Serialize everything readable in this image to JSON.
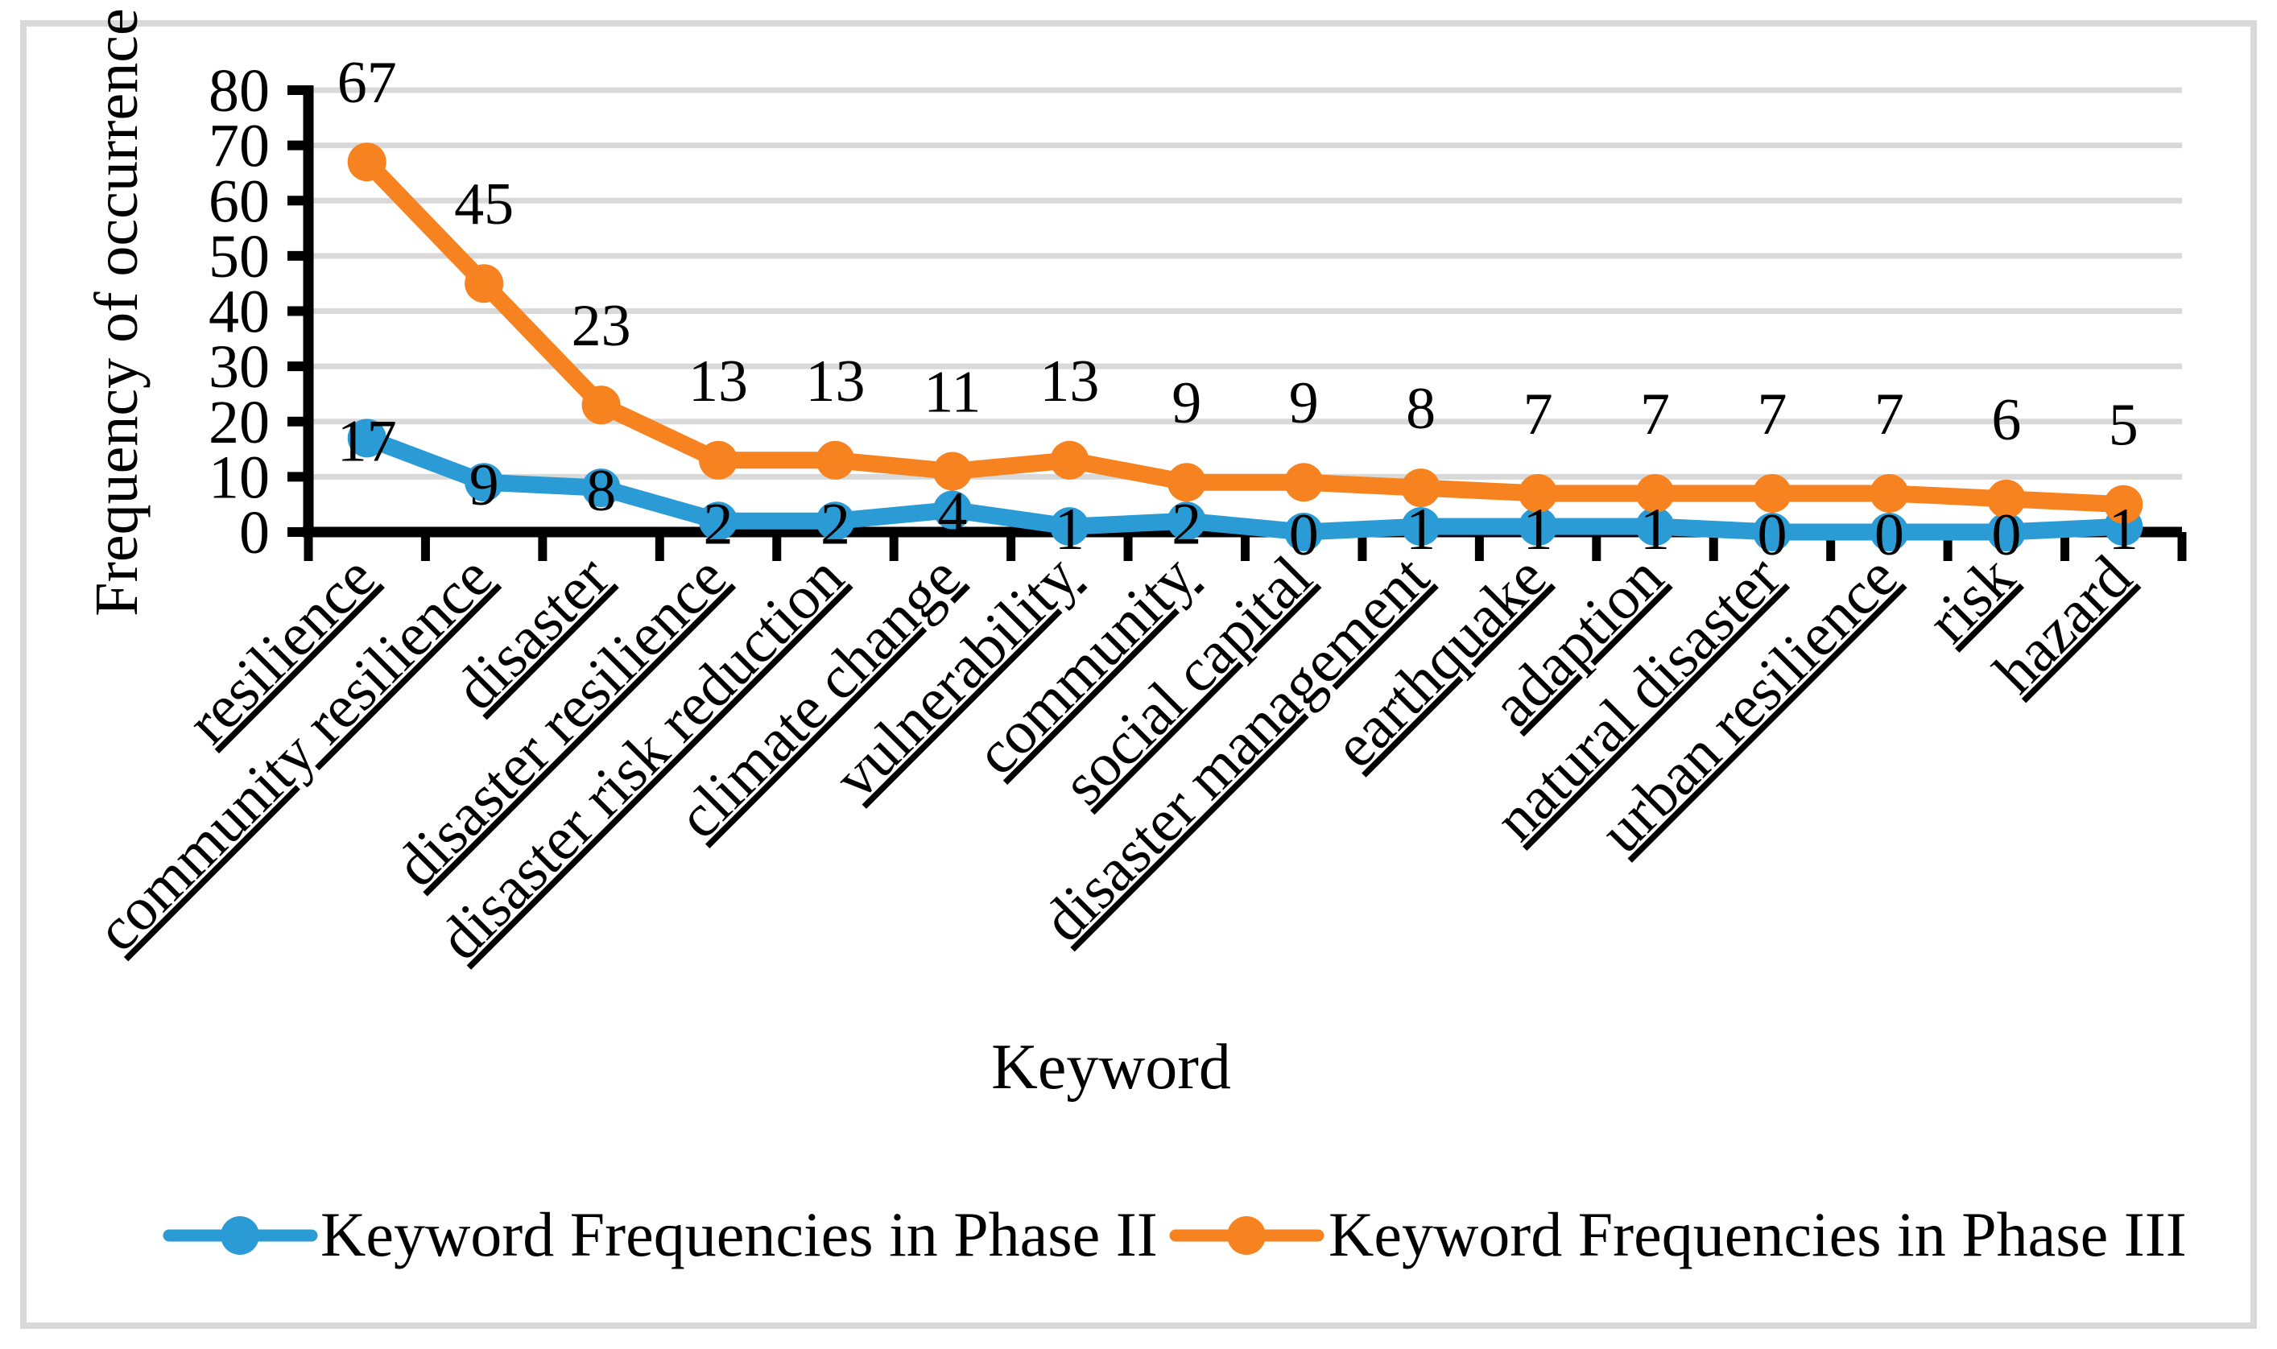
{
  "figure": {
    "background": "#FFFFFF",
    "border_color": "#D9D9D9"
  },
  "chart_data": {
    "type": "line",
    "title": "",
    "xlabel": "Keyword",
    "ylabel": "Frequency of occurrence",
    "ylim": [
      0,
      80
    ],
    "ytick_step": 10,
    "yticks": [
      0,
      10,
      20,
      30,
      40,
      50,
      60,
      70,
      80
    ],
    "grid": "horizontal",
    "gridline_color": "#D9D9D9",
    "axis_color": "#000000",
    "text_color": "#000000",
    "legend_position": "bottom",
    "category_label_style": "rotated-45-underlined",
    "categories": [
      "resilience",
      "community resilience",
      "disaster",
      "disaster resilience",
      "disaster risk reduction",
      "climate change",
      "vulnerability",
      "community",
      "social capital",
      "disaster management",
      "earthquake",
      "adaption",
      "natural disaster",
      "urban resilience",
      "risk",
      "hazard"
    ],
    "series": [
      {
        "name": "Keyword Frequencies in Phase II",
        "color": "#2B9BD6",
        "marker": "circle",
        "label_position": "center",
        "values": [
          17,
          9,
          8,
          2,
          2,
          4,
          1,
          2,
          0,
          1,
          1,
          1,
          0,
          0,
          0,
          1
        ]
      },
      {
        "name": "Keyword Frequencies in Phase III",
        "color": "#F68220",
        "marker": "circle",
        "label_position": "above",
        "values": [
          67,
          45,
          23,
          13,
          13,
          11,
          13,
          9,
          9,
          8,
          7,
          7,
          7,
          7,
          6,
          5
        ]
      }
    ]
  }
}
